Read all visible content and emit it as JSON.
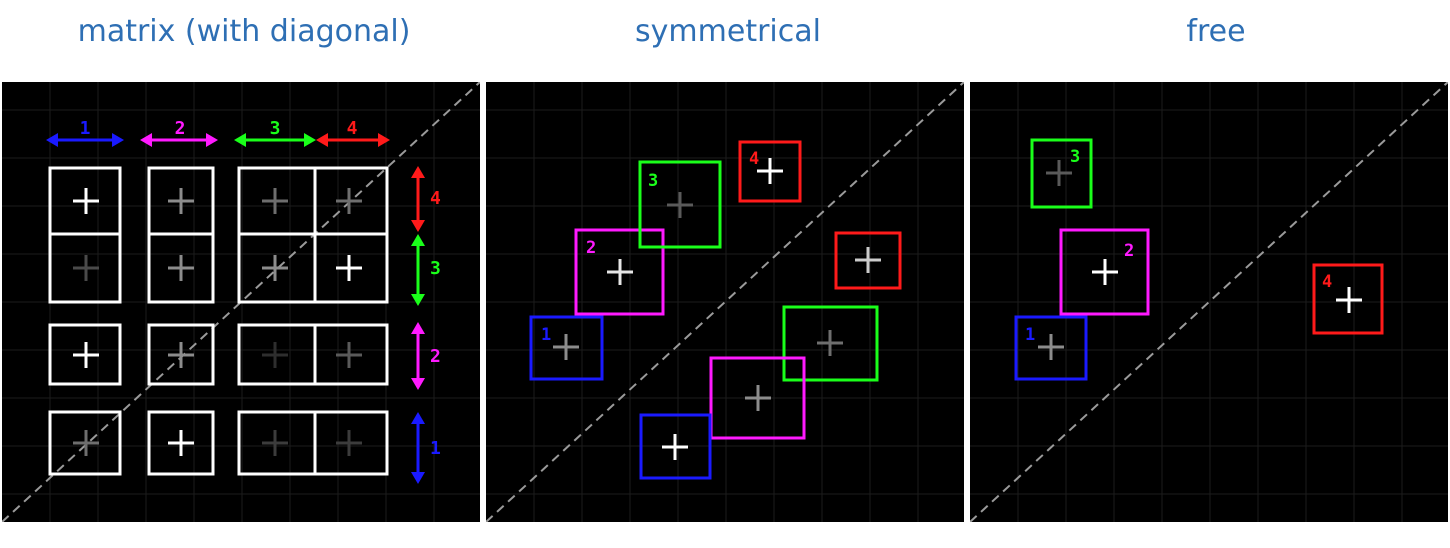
{
  "titles": {
    "matrix": "matrix (with diagonal)",
    "symmetrical": "symmetrical",
    "free": "free"
  },
  "colors": {
    "1": "#1a1aff",
    "2": "#ff1aff",
    "3": "#1aff1a",
    "4": "#ff1a1a",
    "cell_box": "#ffffff",
    "background": "#000000",
    "title": "#2e6fb4",
    "diagonal": "#9a9a9a"
  },
  "labels": {
    "one": "1",
    "two": "2",
    "three": "3",
    "four": "4"
  },
  "matrix_dimensions": {
    "columns": [
      "1",
      "2",
      "3",
      "4"
    ],
    "rows": [
      "4",
      "3",
      "2",
      "1"
    ]
  },
  "symmetrical_blocks": [
    "1",
    "2",
    "3",
    "4"
  ],
  "free_blocks": [
    "1",
    "2",
    "3",
    "4"
  ]
}
